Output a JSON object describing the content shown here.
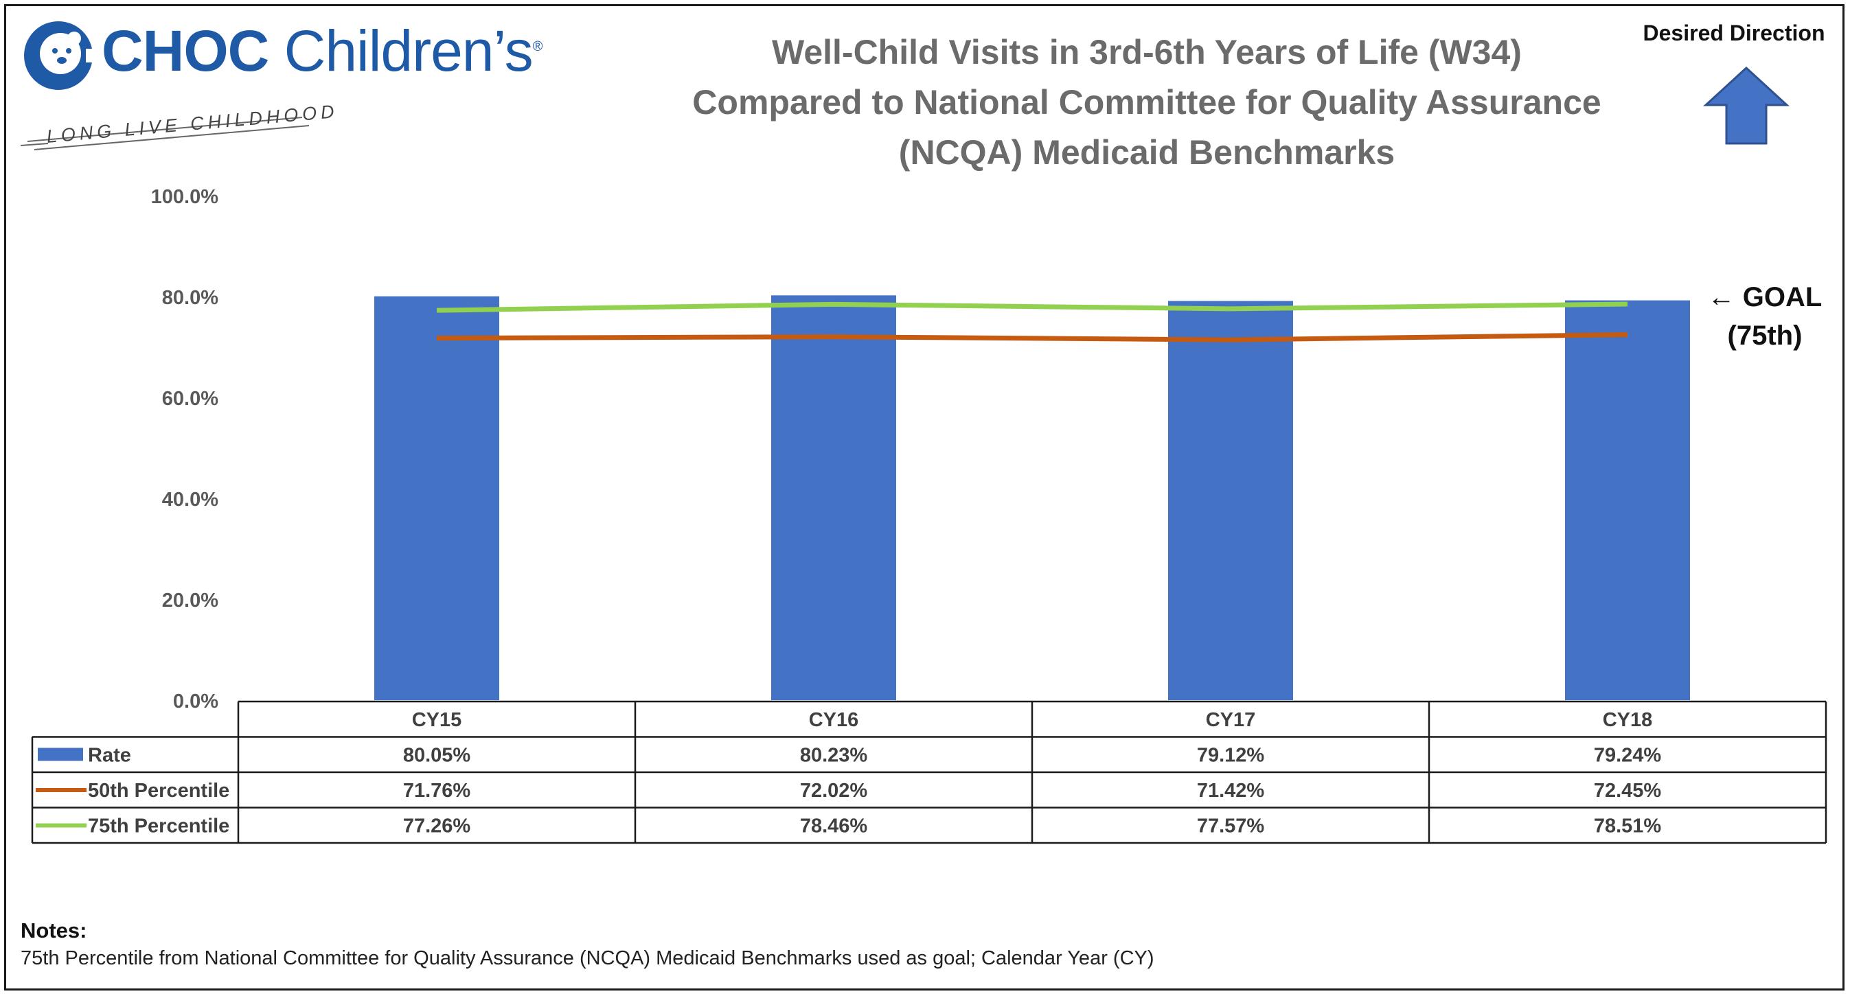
{
  "logo": {
    "brand_bold": "CHOC",
    "brand_regular": "Children’s",
    "mark": "®",
    "tagline": "LONG LIVE CHILDHOOD"
  },
  "direction": {
    "label": "Desired Direction",
    "icon": "up-arrow-icon"
  },
  "goal": {
    "line1": "← GOAL",
    "line2": "(75th)"
  },
  "notes": {
    "heading": "Notes:",
    "text": "75th Percentile from National Committee for Quality Assurance (NCQA) Medicaid Benchmarks used as goal; Calendar Year (CY)"
  },
  "colors": {
    "rate": "#4472c4",
    "p50": "#c55a11",
    "p75": "#92d050",
    "title": "#6b6b6b",
    "brand": "#1f5aa6"
  },
  "chart_data": {
    "type": "bar",
    "title": "Well-Child Visits in 3rd-6th Years of Life (W34) Compared to National Committee for Quality Assurance (NCQA) Medicaid Benchmarks",
    "title_lines": [
      "Well-Child Visits in 3rd-6th Years of Life (W34)",
      "Compared to National Committee for Quality Assurance",
      "(NCQA) Medicaid Benchmarks"
    ],
    "categories": [
      "CY15",
      "CY16",
      "CY17",
      "CY18"
    ],
    "series": [
      {
        "name": "Rate",
        "type": "bar",
        "values": [
          80.05,
          80.23,
          79.12,
          79.24
        ],
        "labels": [
          "80.05%",
          "80.23%",
          "79.12%",
          "79.24%"
        ]
      },
      {
        "name": "50th Percentile",
        "type": "line",
        "values": [
          71.76,
          72.02,
          71.42,
          72.45
        ],
        "labels": [
          "71.76%",
          "72.02%",
          "71.42%",
          "72.45%"
        ]
      },
      {
        "name": "75th Percentile",
        "type": "line",
        "values": [
          77.26,
          78.46,
          77.57,
          78.51
        ],
        "labels": [
          "77.26%",
          "78.46%",
          "77.57%",
          "78.51%"
        ]
      }
    ],
    "ylim": [
      0,
      100
    ],
    "yticks": [
      0,
      20,
      40,
      60,
      80,
      100
    ],
    "ytick_labels": [
      "0.0%",
      "20.0%",
      "40.0%",
      "60.0%",
      "80.0%",
      "100.0%"
    ],
    "xlabel": "",
    "ylabel": "",
    "grid": false,
    "legend": "data-table"
  }
}
